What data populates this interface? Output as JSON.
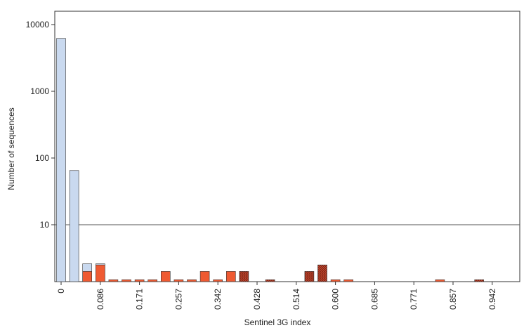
{
  "chart_data": {
    "type": "bar",
    "title": "",
    "xlabel": "Sentinel 3G index",
    "ylabel": "Number of sequences",
    "y_scale": "log",
    "ylim": [
      1,
      15000
    ],
    "y_ticks": [
      {
        "value": 10,
        "label": "10"
      },
      {
        "value": 100,
        "label": "100"
      },
      {
        "value": 1000,
        "label": "1000"
      },
      {
        "value": 10000,
        "label": "10000"
      }
    ],
    "x_ticks": [
      {
        "bin": 0,
        "label": "0"
      },
      {
        "bin": 3,
        "label": "0.086"
      },
      {
        "bin": 6,
        "label": "0.171"
      },
      {
        "bin": 9,
        "label": "0.257"
      },
      {
        "bin": 12,
        "label": "0.342"
      },
      {
        "bin": 15,
        "label": "0.428"
      },
      {
        "bin": 18,
        "label": "0.514"
      },
      {
        "bin": 21,
        "label": "0.600"
      },
      {
        "bin": 24,
        "label": "0.685"
      },
      {
        "bin": 27,
        "label": "0.771"
      },
      {
        "bin": 30,
        "label": "0.857"
      },
      {
        "bin": 33,
        "label": "0.942"
      }
    ],
    "threshold_line": {
      "value": 10
    },
    "grid": false,
    "colors": {
      "non_sentinel": "#c9d9ef",
      "sentinel": "#ef5a32",
      "sentinel_hatched": "#c8402a",
      "bar_stroke": "#333333",
      "threshold": "#555555"
    },
    "bars": [
      {
        "bin": 0,
        "value": 6200,
        "series": "non_sentinel"
      },
      {
        "bin": 1,
        "value": 65,
        "series": "non_sentinel"
      },
      {
        "bin": 2,
        "value": 2.6,
        "series": "non_sentinel"
      },
      {
        "bin": 2,
        "value": 2,
        "series": "sentinel"
      },
      {
        "bin": 3,
        "value": 2.6,
        "series": "non_sentinel"
      },
      {
        "bin": 3,
        "value": 2.5,
        "series": "sentinel"
      },
      {
        "bin": 4,
        "value": 1.5,
        "series": "sentinel"
      },
      {
        "bin": 5,
        "value": 1.5,
        "series": "sentinel"
      },
      {
        "bin": 6,
        "value": 1.5,
        "series": "sentinel"
      },
      {
        "bin": 7,
        "value": 1.5,
        "series": "sentinel"
      },
      {
        "bin": 8,
        "value": 2,
        "series": "sentinel"
      },
      {
        "bin": 9,
        "value": 1.5,
        "series": "sentinel"
      },
      {
        "bin": 10,
        "value": 1.5,
        "series": "sentinel"
      },
      {
        "bin": 11,
        "value": 2,
        "series": "sentinel"
      },
      {
        "bin": 12,
        "value": 1.5,
        "series": "sentinel"
      },
      {
        "bin": 13,
        "value": 2,
        "series": "sentinel"
      },
      {
        "bin": 14,
        "value": 2,
        "series": "sentinel_hatched"
      },
      {
        "bin": 16,
        "value": 1.5,
        "series": "sentinel_hatched"
      },
      {
        "bin": 19,
        "value": 2,
        "series": "sentinel_hatched"
      },
      {
        "bin": 20,
        "value": 2.5,
        "series": "sentinel_hatched"
      },
      {
        "bin": 21,
        "value": 1.5,
        "series": "sentinel"
      },
      {
        "bin": 22,
        "value": 1.5,
        "series": "sentinel"
      },
      {
        "bin": 29,
        "value": 1.5,
        "series": "sentinel"
      },
      {
        "bin": 32,
        "value": 1.5,
        "series": "sentinel_hatched"
      }
    ]
  }
}
